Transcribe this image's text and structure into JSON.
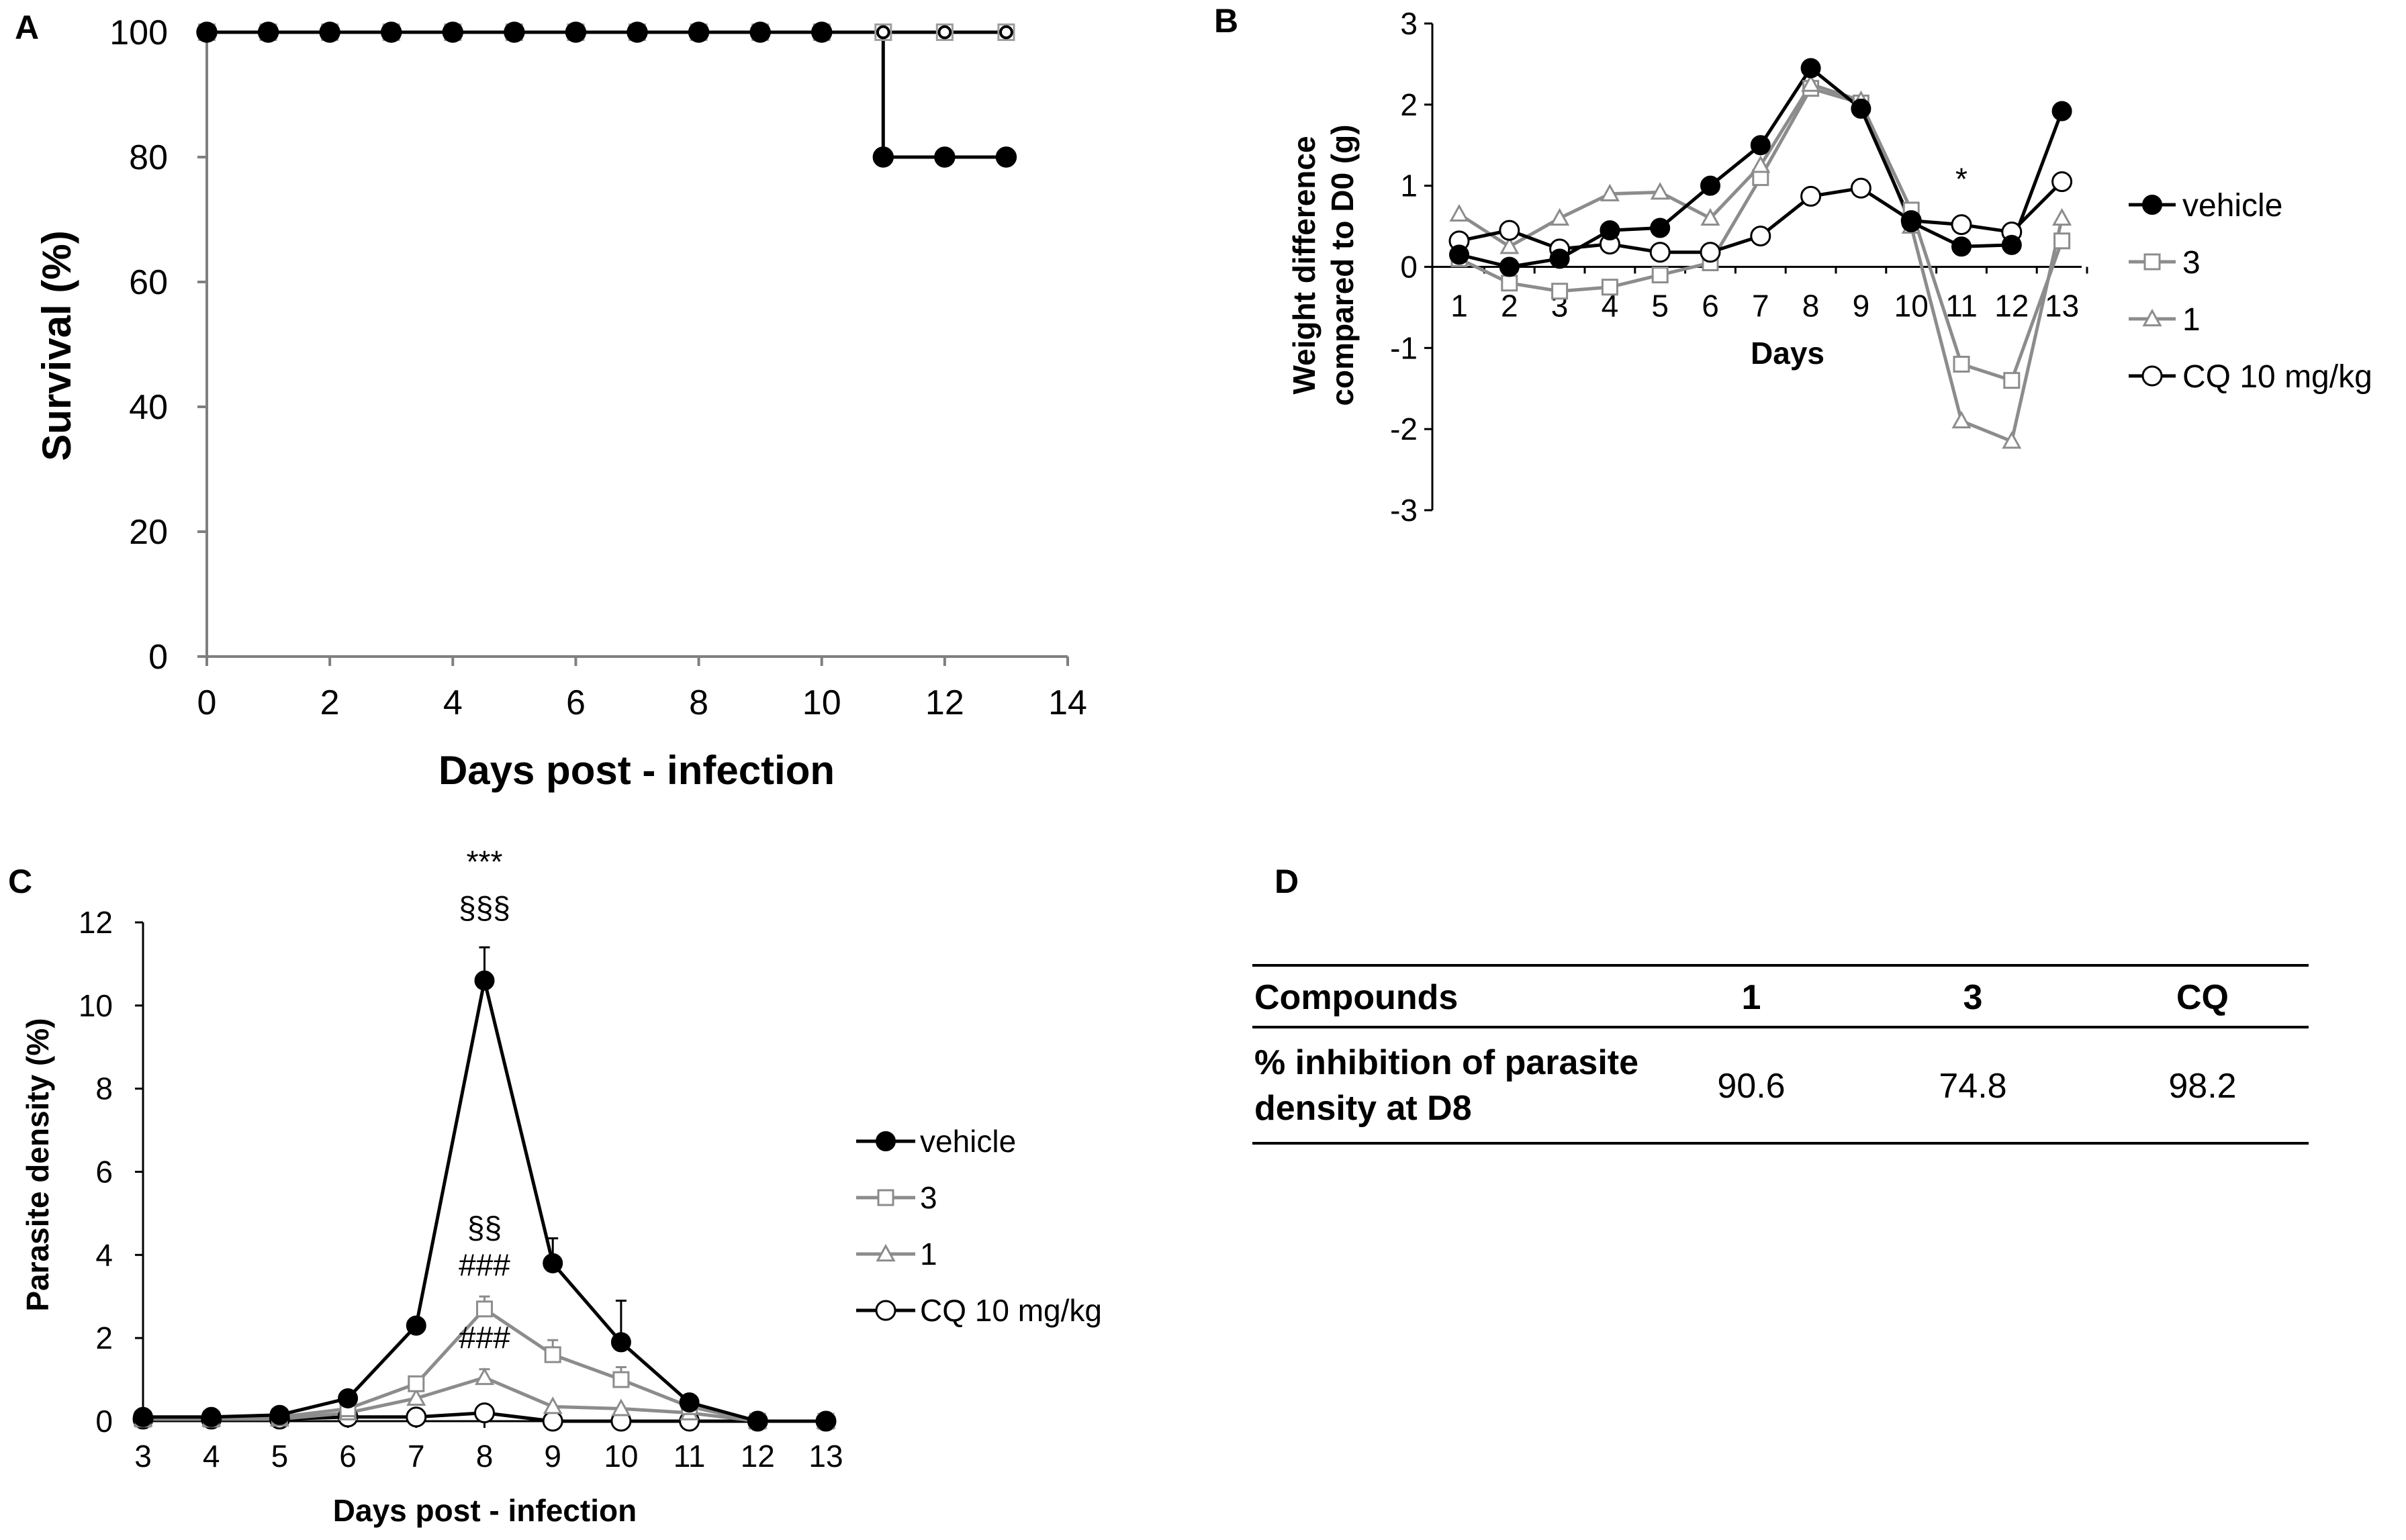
{
  "chart_data": [
    {
      "panel": "A",
      "type": "line",
      "title": "",
      "xlabel": "Days post - infection",
      "ylabel": "Survival (%)",
      "xlim": [
        0,
        14
      ],
      "ylim": [
        0,
        100
      ],
      "xticks": [
        "0",
        "2",
        "4",
        "6",
        "8",
        "10",
        "12",
        "14"
      ],
      "yticks": [
        "0",
        "20",
        "40",
        "60",
        "80",
        "100"
      ],
      "grid": false,
      "step": true,
      "series": [
        {
          "name": "CQ 10 mg/kg",
          "marker": "open-square",
          "color": "#9e9e9e",
          "x": [
            0,
            1,
            2,
            3,
            4,
            5,
            6,
            7,
            8,
            9,
            10,
            11,
            12,
            13
          ],
          "y": [
            100,
            100,
            100,
            100,
            100,
            100,
            100,
            100,
            100,
            100,
            100,
            100,
            100,
            100
          ]
        },
        {
          "name": "1",
          "marker": "small-open-circle",
          "color": "#000000",
          "x": [
            0,
            1,
            2,
            3,
            4,
            5,
            6,
            7,
            8,
            9,
            10,
            11,
            12,
            13
          ],
          "y": [
            100,
            100,
            100,
            100,
            100,
            100,
            100,
            100,
            100,
            100,
            100,
            100,
            100,
            100
          ]
        },
        {
          "name": "vehicle",
          "marker": "filled-circle",
          "color": "#000000",
          "x": [
            0,
            1,
            2,
            3,
            4,
            5,
            6,
            7,
            8,
            9,
            10,
            11,
            11,
            12,
            13
          ],
          "y": [
            100,
            100,
            100,
            100,
            100,
            100,
            100,
            100,
            100,
            100,
            100,
            100,
            80,
            80,
            80
          ]
        }
      ]
    },
    {
      "panel": "B",
      "type": "line",
      "title": "",
      "xlabel": "Days",
      "ylabel": "Weight difference compared to D0 (g)",
      "ylabel_lines": [
        "Weight difference",
        "compared to D0 (g)"
      ],
      "ylim": [
        -3,
        3
      ],
      "categories": [
        "1",
        "2",
        "3",
        "4",
        "5",
        "6",
        "7",
        "8",
        "9",
        "10",
        "11",
        "12",
        "13"
      ],
      "yticks": [
        "-3",
        "-2",
        "-1",
        "0",
        "1",
        "2",
        "3"
      ],
      "grid": false,
      "legend": "right",
      "annotations": [
        {
          "text": "*",
          "x": "11"
        }
      ],
      "series": [
        {
          "name": "vehicle",
          "marker": "filled-circle",
          "color": "#000000",
          "values": [
            0.15,
            0.0,
            0.1,
            0.45,
            0.48,
            1.0,
            1.5,
            2.45,
            1.95,
            0.55,
            0.25,
            0.27,
            1.92
          ]
        },
        {
          "name": "3",
          "marker": "open-square",
          "color": "#8c8c8c",
          "values": [
            0.1,
            -0.2,
            -0.3,
            -0.25,
            -0.1,
            0.05,
            1.1,
            2.2,
            2.02,
            0.7,
            -1.2,
            -1.4,
            0.32
          ]
        },
        {
          "name": "1",
          "marker": "open-triangle",
          "color": "#8c8c8c",
          "values": [
            0.65,
            0.25,
            0.6,
            0.9,
            0.92,
            0.6,
            1.25,
            2.25,
            2.05,
            0.5,
            -1.9,
            -2.15,
            0.6
          ]
        },
        {
          "name": "CQ 10 mg/kg",
          "marker": "open-circle",
          "color": "#000000",
          "values": [
            0.32,
            0.45,
            0.22,
            0.28,
            0.18,
            0.18,
            0.38,
            0.87,
            0.97,
            0.57,
            0.52,
            0.43,
            1.05
          ]
        }
      ]
    },
    {
      "panel": "C",
      "type": "line",
      "title": "",
      "xlabel": "Days post - infection",
      "ylabel": "Parasite density (%)",
      "ylim": [
        0,
        12
      ],
      "categories": [
        "3",
        "4",
        "5",
        "6",
        "7",
        "8",
        "9",
        "10",
        "11",
        "12",
        "13"
      ],
      "yticks": [
        "0",
        "2",
        "4",
        "6",
        "8",
        "10",
        "12"
      ],
      "grid": false,
      "legend": "right",
      "annotations": [
        {
          "text": "***",
          "x": "8",
          "y": 13.2
        },
        {
          "text": "§§§",
          "x": "8",
          "y": 12.1
        },
        {
          "text": "§§",
          "x": "8",
          "y": 4.4
        },
        {
          "text": "###",
          "x": "8",
          "y": 3.5
        },
        {
          "text": "###",
          "x": "8",
          "y": 1.75
        }
      ],
      "series": [
        {
          "name": "vehicle",
          "marker": "filled-circle",
          "color": "#000000",
          "values": [
            0.1,
            0.1,
            0.15,
            0.55,
            2.3,
            10.6,
            3.8,
            1.9,
            0.45,
            0,
            0
          ],
          "errors": [
            0,
            0,
            0,
            0,
            0.15,
            0.8,
            0.6,
            1.0,
            0,
            0,
            0
          ]
        },
        {
          "name": "3",
          "marker": "open-square",
          "color": "#8c8c8c",
          "values": [
            0.05,
            0.05,
            0.1,
            0.3,
            0.9,
            2.7,
            1.6,
            1.0,
            0.35,
            0,
            0
          ],
          "errors": [
            0,
            0,
            0,
            0,
            0,
            0.3,
            0.35,
            0.3,
            0,
            0,
            0
          ]
        },
        {
          "name": "1",
          "marker": "open-triangle",
          "color": "#8c8c8c",
          "values": [
            0.05,
            0.05,
            0.05,
            0.2,
            0.55,
            1.05,
            0.35,
            0.3,
            0.2,
            0,
            0
          ],
          "errors": [
            0,
            0,
            0,
            0,
            0,
            0.2,
            0,
            0,
            0,
            0,
            0
          ]
        },
        {
          "name": "CQ 10 mg/kg",
          "marker": "open-circle",
          "color": "#000000",
          "values": [
            0.05,
            0.05,
            0.05,
            0.1,
            0.1,
            0.2,
            0,
            0,
            0,
            0,
            0
          ],
          "errors": [
            0,
            0,
            0,
            0,
            0,
            0,
            0,
            0,
            0,
            0,
            0
          ]
        }
      ]
    },
    {
      "panel": "D",
      "type": "table",
      "columns": [
        "Compounds",
        "1",
        "3",
        "CQ"
      ],
      "rows": [
        {
          "label_lines": [
            "% inhibition of parasite",
            "density at D8"
          ],
          "values": [
            "90.6",
            "74.8",
            "98.2"
          ]
        }
      ]
    }
  ]
}
